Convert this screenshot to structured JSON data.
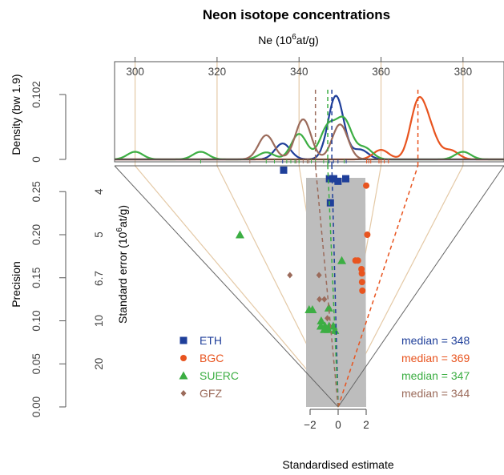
{
  "chart_data": {
    "type": "scatter",
    "title": "Neon isotope concentrations",
    "top_axis_label": "Ne",
    "top_axis_unit_exponent": "6",
    "top_axis_unit_suffix": "at/g)",
    "top_axis_unit_prefix": "(10",
    "top_axis_ticks": [
      "300",
      "320",
      "340",
      "360",
      "380"
    ],
    "density_label": "Density (bw 1.9)",
    "density_ticks": [
      "0",
      "0.102"
    ],
    "precision_label": "Precision",
    "precision_ticks": [
      "0.00",
      "0.05",
      "0.10",
      "0.15",
      "0.20",
      "0.25"
    ],
    "se_label_prefix": "Standard error (10",
    "se_label_exponent": "6",
    "se_label_suffix": "at/g)",
    "se_ticks": [
      "4",
      "5",
      "6.7",
      "10",
      "20"
    ],
    "x_label": "Standardised estimate",
    "x_ticks": [
      "−2",
      "0",
      "2"
    ],
    "legend": [
      {
        "name": "ETH",
        "color": "#1f3f9a",
        "marker": "square"
      },
      {
        "name": "BGC",
        "color": "#e8541f",
        "marker": "circle"
      },
      {
        "name": "SUERC",
        "color": "#3cae43",
        "marker": "triangle"
      },
      {
        "name": "GFZ",
        "color": "#9b6b5b",
        "marker": "diamond"
      }
    ],
    "medians": [
      {
        "label": "median = 348",
        "value": 348,
        "color": "#1f3f9a"
      },
      {
        "label": "median = 369",
        "value": 369,
        "color": "#e8541f"
      },
      {
        "label": "median = 347",
        "value": 347,
        "color": "#3cae43"
      },
      {
        "label": "median = 344",
        "value": 344,
        "color": "#9b6b5b"
      }
    ],
    "concentration_range": [
      295,
      390
    ],
    "precision_range": [
      0,
      0.28
    ],
    "density_range": [
      0,
      0.102
    ],
    "reference_lines": [
      300,
      320,
      340,
      360,
      380
    ],
    "series": [
      {
        "name": "ETH",
        "points": [
          [
            336,
            0.275
          ],
          [
            347.3,
            0.265
          ],
          [
            348.4,
            0.265
          ],
          [
            349.5,
            0.262
          ],
          [
            351.5,
            0.265
          ],
          [
            347.3,
            0.237
          ]
        ]
      },
      {
        "name": "BGC",
        "points": [
          [
            357,
            0.257
          ],
          [
            359.5,
            0.2
          ],
          [
            356.5,
            0.17
          ],
          [
            357.5,
            0.17
          ],
          [
            359.5,
            0.16
          ],
          [
            360.0,
            0.155
          ],
          [
            360.8,
            0.145
          ],
          [
            361.8,
            0.135
          ]
        ]
      },
      {
        "name": "SUERC",
        "points": [
          [
            316,
            0.2
          ],
          [
            351,
            0.17
          ],
          [
            332,
            0.113
          ],
          [
            334,
            0.113
          ],
          [
            337,
            0.094
          ],
          [
            338,
            0.1
          ],
          [
            339,
            0.09
          ],
          [
            340,
            0.094
          ],
          [
            342,
            0.09
          ],
          [
            343,
            0.094
          ],
          [
            344,
            0.115
          ],
          [
            346,
            0.094
          ],
          [
            347,
            0.089
          ]
        ]
      },
      {
        "name": "GFZ",
        "points": [
          [
            328,
            0.153
          ],
          [
            341,
            0.153
          ],
          [
            339.3,
            0.125
          ],
          [
            342,
            0.125
          ],
          [
            342.4,
            0.103
          ]
        ]
      }
    ],
    "density_curves": [
      {
        "name": "ETH",
        "peaks": [
          [
            336,
            0.025
          ],
          [
            349,
            0.1
          ],
          [
            355,
            0.015
          ]
        ]
      },
      {
        "name": "BGC",
        "peaks": [
          [
            360,
            0.015
          ],
          [
            369,
            0.085
          ],
          [
            372,
            0.038
          ],
          [
            377,
            0.014
          ]
        ]
      },
      {
        "name": "SUERC",
        "peaks": [
          [
            300,
            0.012
          ],
          [
            316,
            0.012
          ],
          [
            332,
            0.011
          ],
          [
            340,
            0.04
          ],
          [
            347,
            0.05
          ],
          [
            351,
            0.06
          ],
          [
            356,
            0.018
          ],
          [
            380,
            0.012
          ]
        ]
      },
      {
        "name": "GFZ",
        "peaks": [
          [
            332,
            0.038
          ],
          [
            341,
            0.063
          ],
          [
            350,
            0.055
          ]
        ]
      }
    ]
  }
}
